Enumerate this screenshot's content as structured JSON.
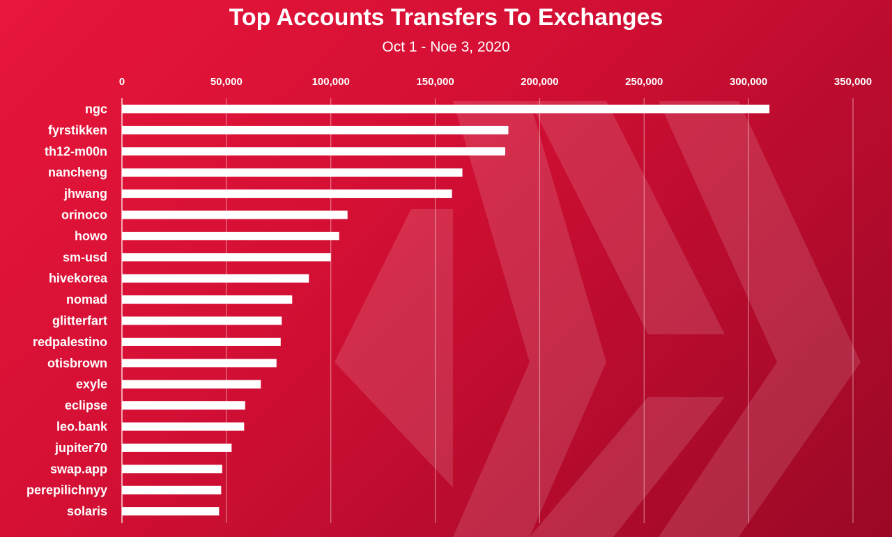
{
  "colors": {
    "background": "#d40f34",
    "bar": "#ffffff",
    "text": "#ffffff"
  },
  "watermark_icon": "hive-logo-icon",
  "chart_data": {
    "type": "bar",
    "orientation": "horizontal",
    "title": "Top Accounts Transfers To Exchanges",
    "subtitle": "Oct 1 - Noe 3, 2020",
    "xlabel": "",
    "ylabel": "",
    "xlim": [
      0,
      350000
    ],
    "x_ticks": [
      0,
      50000,
      100000,
      150000,
      200000,
      250000,
      300000,
      350000
    ],
    "x_tick_labels": [
      "0",
      "50,000",
      "100,000",
      "150,000",
      "200,000",
      "250,000",
      "300,000",
      "350,000"
    ],
    "x_axis_position": "top",
    "grid": true,
    "categories": [
      "ngc",
      "fyrstikken",
      "th12-m00n",
      "nancheng",
      "jhwang",
      "orinoco",
      "howo",
      "sm-usd",
      "hivekorea",
      "nomad",
      "glitterfart",
      "redpalestino",
      "otisbrown",
      "exyle",
      "eclipse",
      "leo.bank",
      "jupiter70",
      "swap.app",
      "perepilichnyy",
      "solaris"
    ],
    "values": [
      310000,
      185000,
      183500,
      163000,
      158000,
      108000,
      104000,
      100000,
      89500,
      81500,
      76500,
      76000,
      74000,
      66500,
      59000,
      58500,
      52500,
      48000,
      47500,
      46500
    ]
  }
}
